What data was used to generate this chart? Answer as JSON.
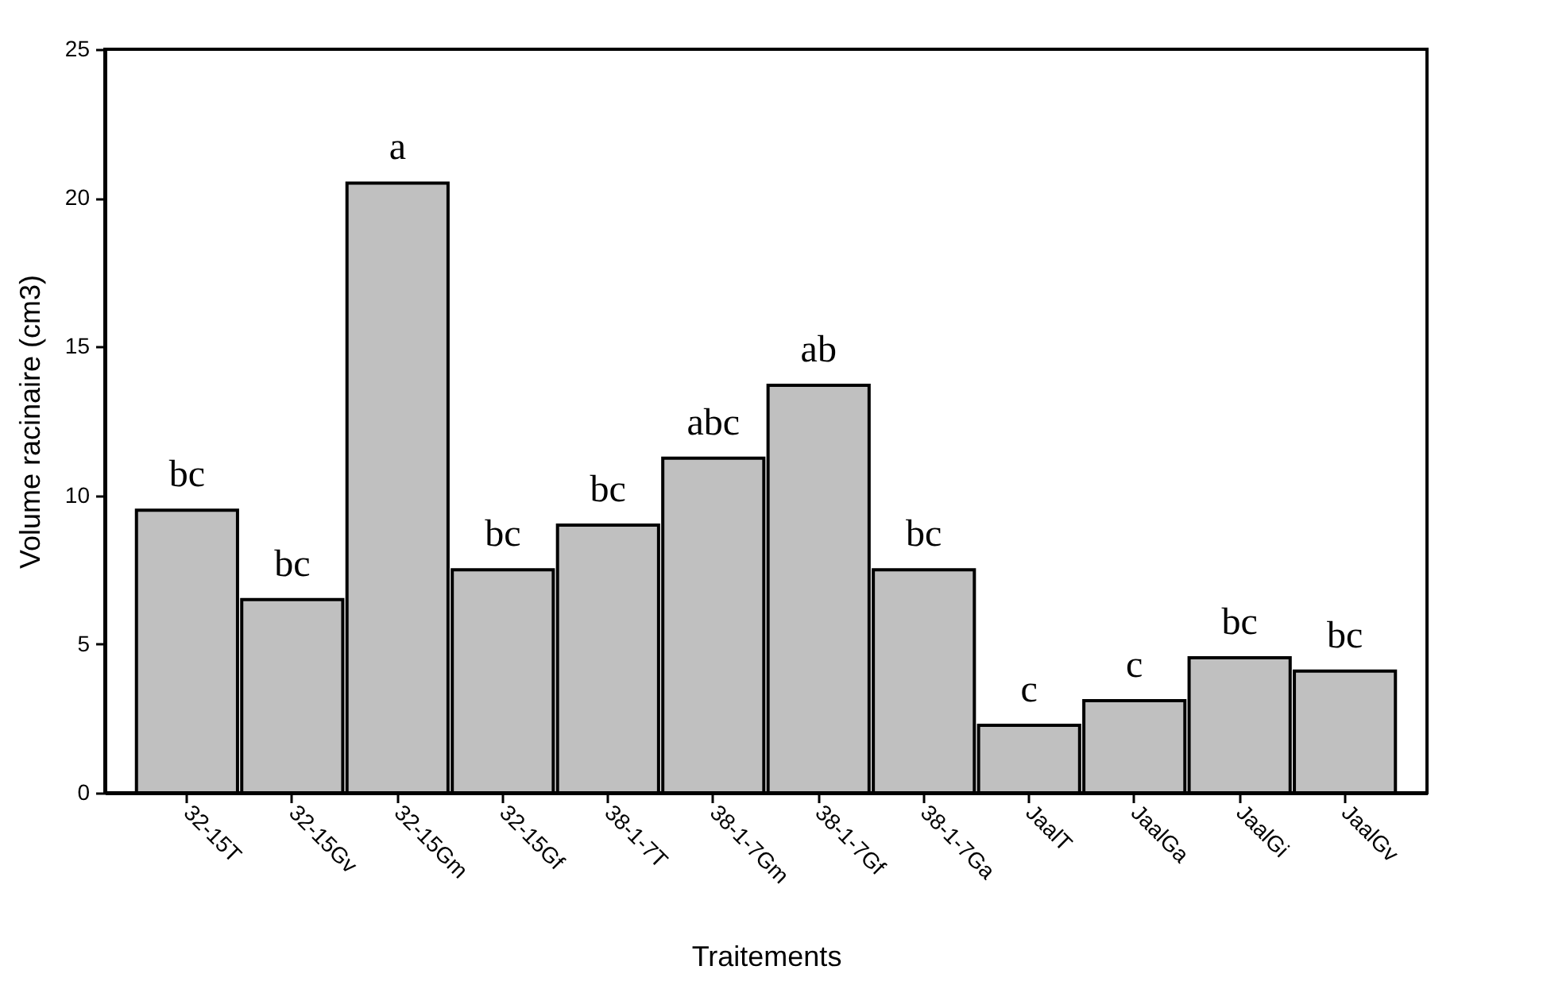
{
  "chart_data": {
    "type": "bar",
    "xlabel": "Traitements",
    "ylabel": "Volume racinaire (cm3)",
    "categories": [
      "32-15T",
      "32-15Gv",
      "32-15Gm",
      "32-15Gf",
      "38-1-7T",
      "38-1-7Gm",
      "38-1-7Gf",
      "38-1-7Ga",
      "JaalT",
      "JaalGa",
      "JaalGi",
      "JaalGv"
    ],
    "values": [
      9.5,
      6.5,
      20.5,
      7.5,
      9.0,
      11.25,
      13.7,
      7.5,
      2.27,
      3.1,
      4.54,
      4.09
    ],
    "color": "#c0c0c0",
    "ylim": [
      0,
      25
    ],
    "yticks": [
      0,
      5,
      10,
      15,
      20,
      25
    ],
    "grid": false,
    "annotations": [
      {
        "text": "bc",
        "x": "32-15T",
        "y": 9.5
      },
      {
        "text": "bc",
        "x": "32-15Gv",
        "y": 6.5
      },
      {
        "text": "a",
        "x": "32-15Gm",
        "y": 20.5
      },
      {
        "text": "bc",
        "x": "32-15Gf",
        "y": 7.5
      },
      {
        "text": "bc",
        "x": "38-1-7T",
        "y": 9.0
      },
      {
        "text": "abc",
        "x": "38-1-7Gm",
        "y": 11.25
      },
      {
        "text": "ab",
        "x": "38-1-7Gf",
        "y": 13.7
      },
      {
        "text": "bc",
        "x": "38-1-7Ga",
        "y": 7.5
      },
      {
        "text": "c",
        "x": "JaalT",
        "y": 2.27
      },
      {
        "text": "c",
        "x": "JaalGa",
        "y": 3.1
      },
      {
        "text": "bc",
        "x": "JaalGi",
        "y": 4.54
      },
      {
        "text": "bc",
        "x": "JaalGv",
        "y": 4.09
      }
    ]
  }
}
